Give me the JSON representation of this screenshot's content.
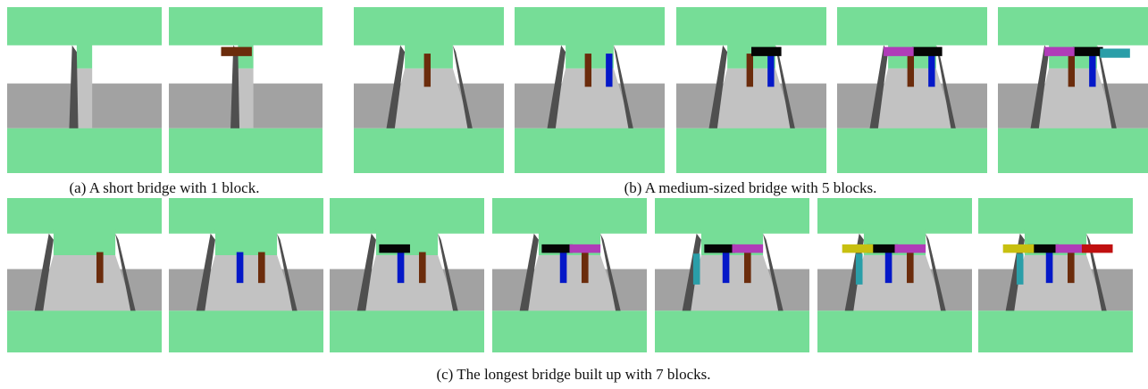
{
  "figure": {
    "subfigures": [
      {
        "caption": "(a) A short bridge with 1 block."
      },
      {
        "caption": "(b) A medium-sized bridge with 5 blocks."
      },
      {
        "caption": "(c) The longest bridge built up with 7 blocks."
      }
    ]
  }
}
